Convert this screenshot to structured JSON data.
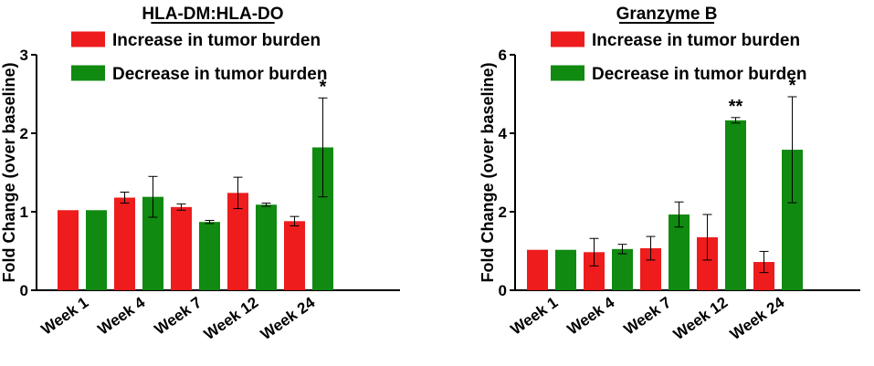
{
  "colors": {
    "increase": "#ee1c1c",
    "decrease": "#108a10",
    "axis": "#000000"
  },
  "chart_data": [
    {
      "type": "bar",
      "title": "HLA-DM:HLA-DO",
      "ylabel": "Fold Change (over baseline)",
      "xlabel": "",
      "ylim": [
        0,
        3
      ],
      "yticks": [
        "0",
        "1",
        "2",
        "3"
      ],
      "categories": [
        "Week 1",
        "Week 4",
        "Week 7",
        "Week 12",
        "Week 24"
      ],
      "legend_position": "top-left",
      "series": [
        {
          "name": "Increase in tumor burden",
          "values": [
            1.02,
            1.18,
            1.06,
            1.24,
            0.88
          ],
          "errors": [
            0,
            0.07,
            0.04,
            0.2,
            0.06
          ]
        },
        {
          "name": "Decrease in tumor burden",
          "values": [
            1.02,
            1.19,
            0.87,
            1.09,
            1.82
          ],
          "errors": [
            0,
            0.26,
            0.02,
            0.02,
            0.63
          ]
        }
      ],
      "annotations": [
        {
          "category": "Week 24",
          "series": 1,
          "text": "*"
        }
      ]
    },
    {
      "type": "bar",
      "title": "Granzyme B",
      "ylabel": "Fold Change (over baseline)",
      "xlabel": "",
      "ylim": [
        0,
        6
      ],
      "yticks": [
        "0",
        "2",
        "4",
        "6"
      ],
      "categories": [
        "Week 1",
        "Week 4",
        "Week 7",
        "Week 12",
        "Week 24"
      ],
      "legend_position": "top-left",
      "series": [
        {
          "name": "Increase in tumor burden",
          "values": [
            1.03,
            0.97,
            1.07,
            1.35,
            0.72
          ],
          "errors": [
            0,
            0.35,
            0.3,
            0.58,
            0.27
          ]
        },
        {
          "name": "Decrease in tumor burden",
          "values": [
            1.03,
            1.05,
            1.93,
            4.33,
            3.58
          ],
          "errors": [
            0,
            0.12,
            0.32,
            0.07,
            1.35
          ]
        }
      ],
      "annotations": [
        {
          "category": "Week 12",
          "series": 1,
          "text": "**"
        },
        {
          "category": "Week 24",
          "series": 1,
          "text": "*"
        }
      ]
    }
  ]
}
